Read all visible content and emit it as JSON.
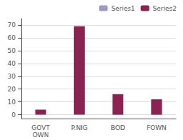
{
  "chart_data": {
    "type": "bar",
    "categories": [
      "GOVT\nOWN",
      "P.NIG",
      "BOD",
      "FOWN"
    ],
    "series": [
      {
        "name": "Series1",
        "color": "#9999cc",
        "values": [
          null,
          null,
          null,
          null
        ]
      },
      {
        "name": "Series2",
        "color": "#8B2252",
        "values": [
          4,
          69,
          16,
          12
        ]
      }
    ],
    "ylim": [
      -3,
      75
    ],
    "yticks": [
      0,
      10,
      20,
      30,
      40,
      50,
      60,
      70
    ],
    "grid": true,
    "legend": "upper right"
  }
}
